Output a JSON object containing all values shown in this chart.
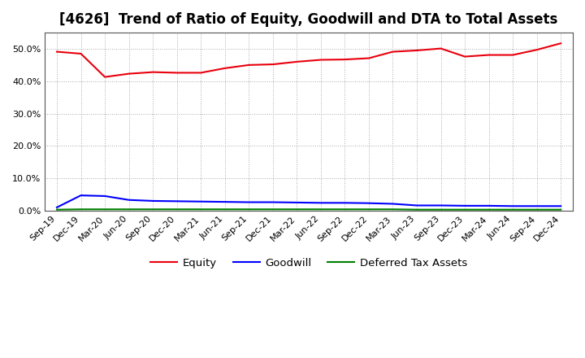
{
  "title": "[4626]  Trend of Ratio of Equity, Goodwill and DTA to Total Assets",
  "x_labels": [
    "Sep-19",
    "Dec-19",
    "Mar-20",
    "Jun-20",
    "Sep-20",
    "Dec-20",
    "Mar-21",
    "Jun-21",
    "Sep-21",
    "Dec-21",
    "Mar-22",
    "Jun-22",
    "Sep-22",
    "Dec-22",
    "Mar-23",
    "Jun-23",
    "Sep-23",
    "Dec-23",
    "Mar-24",
    "Jun-24",
    "Sep-24",
    "Dec-24"
  ],
  "equity": [
    0.491,
    0.485,
    0.413,
    0.423,
    0.428,
    0.426,
    0.426,
    0.44,
    0.45,
    0.452,
    0.46,
    0.466,
    0.467,
    0.471,
    0.491,
    0.495,
    0.501,
    0.476,
    0.481,
    0.481,
    0.497,
    0.517
  ],
  "goodwill": [
    0.01,
    0.047,
    0.045,
    0.033,
    0.03,
    0.029,
    0.028,
    0.027,
    0.026,
    0.026,
    0.025,
    0.024,
    0.024,
    0.023,
    0.021,
    0.016,
    0.016,
    0.015,
    0.015,
    0.014,
    0.014,
    0.014
  ],
  "dta": [
    0.003,
    0.004,
    0.004,
    0.004,
    0.004,
    0.004,
    0.004,
    0.004,
    0.004,
    0.004,
    0.004,
    0.004,
    0.004,
    0.004,
    0.004,
    0.003,
    0.003,
    0.003,
    0.003,
    0.003,
    0.003,
    0.003
  ],
  "equity_color": "#e8000d",
  "goodwill_color": "#0000ff",
  "dta_color": "#008000",
  "background_color": "#ffffff",
  "plot_bg_color": "#ffffff",
  "ylim": [
    0.0,
    0.55
  ],
  "yticks": [
    0.0,
    0.1,
    0.2,
    0.3,
    0.4,
    0.5
  ],
  "legend_labels": [
    "Equity",
    "Goodwill",
    "Deferred Tax Assets"
  ],
  "grid_color": "#aaaaaa",
  "title_fontsize": 12,
  "tick_fontsize": 8,
  "legend_fontsize": 9.5
}
